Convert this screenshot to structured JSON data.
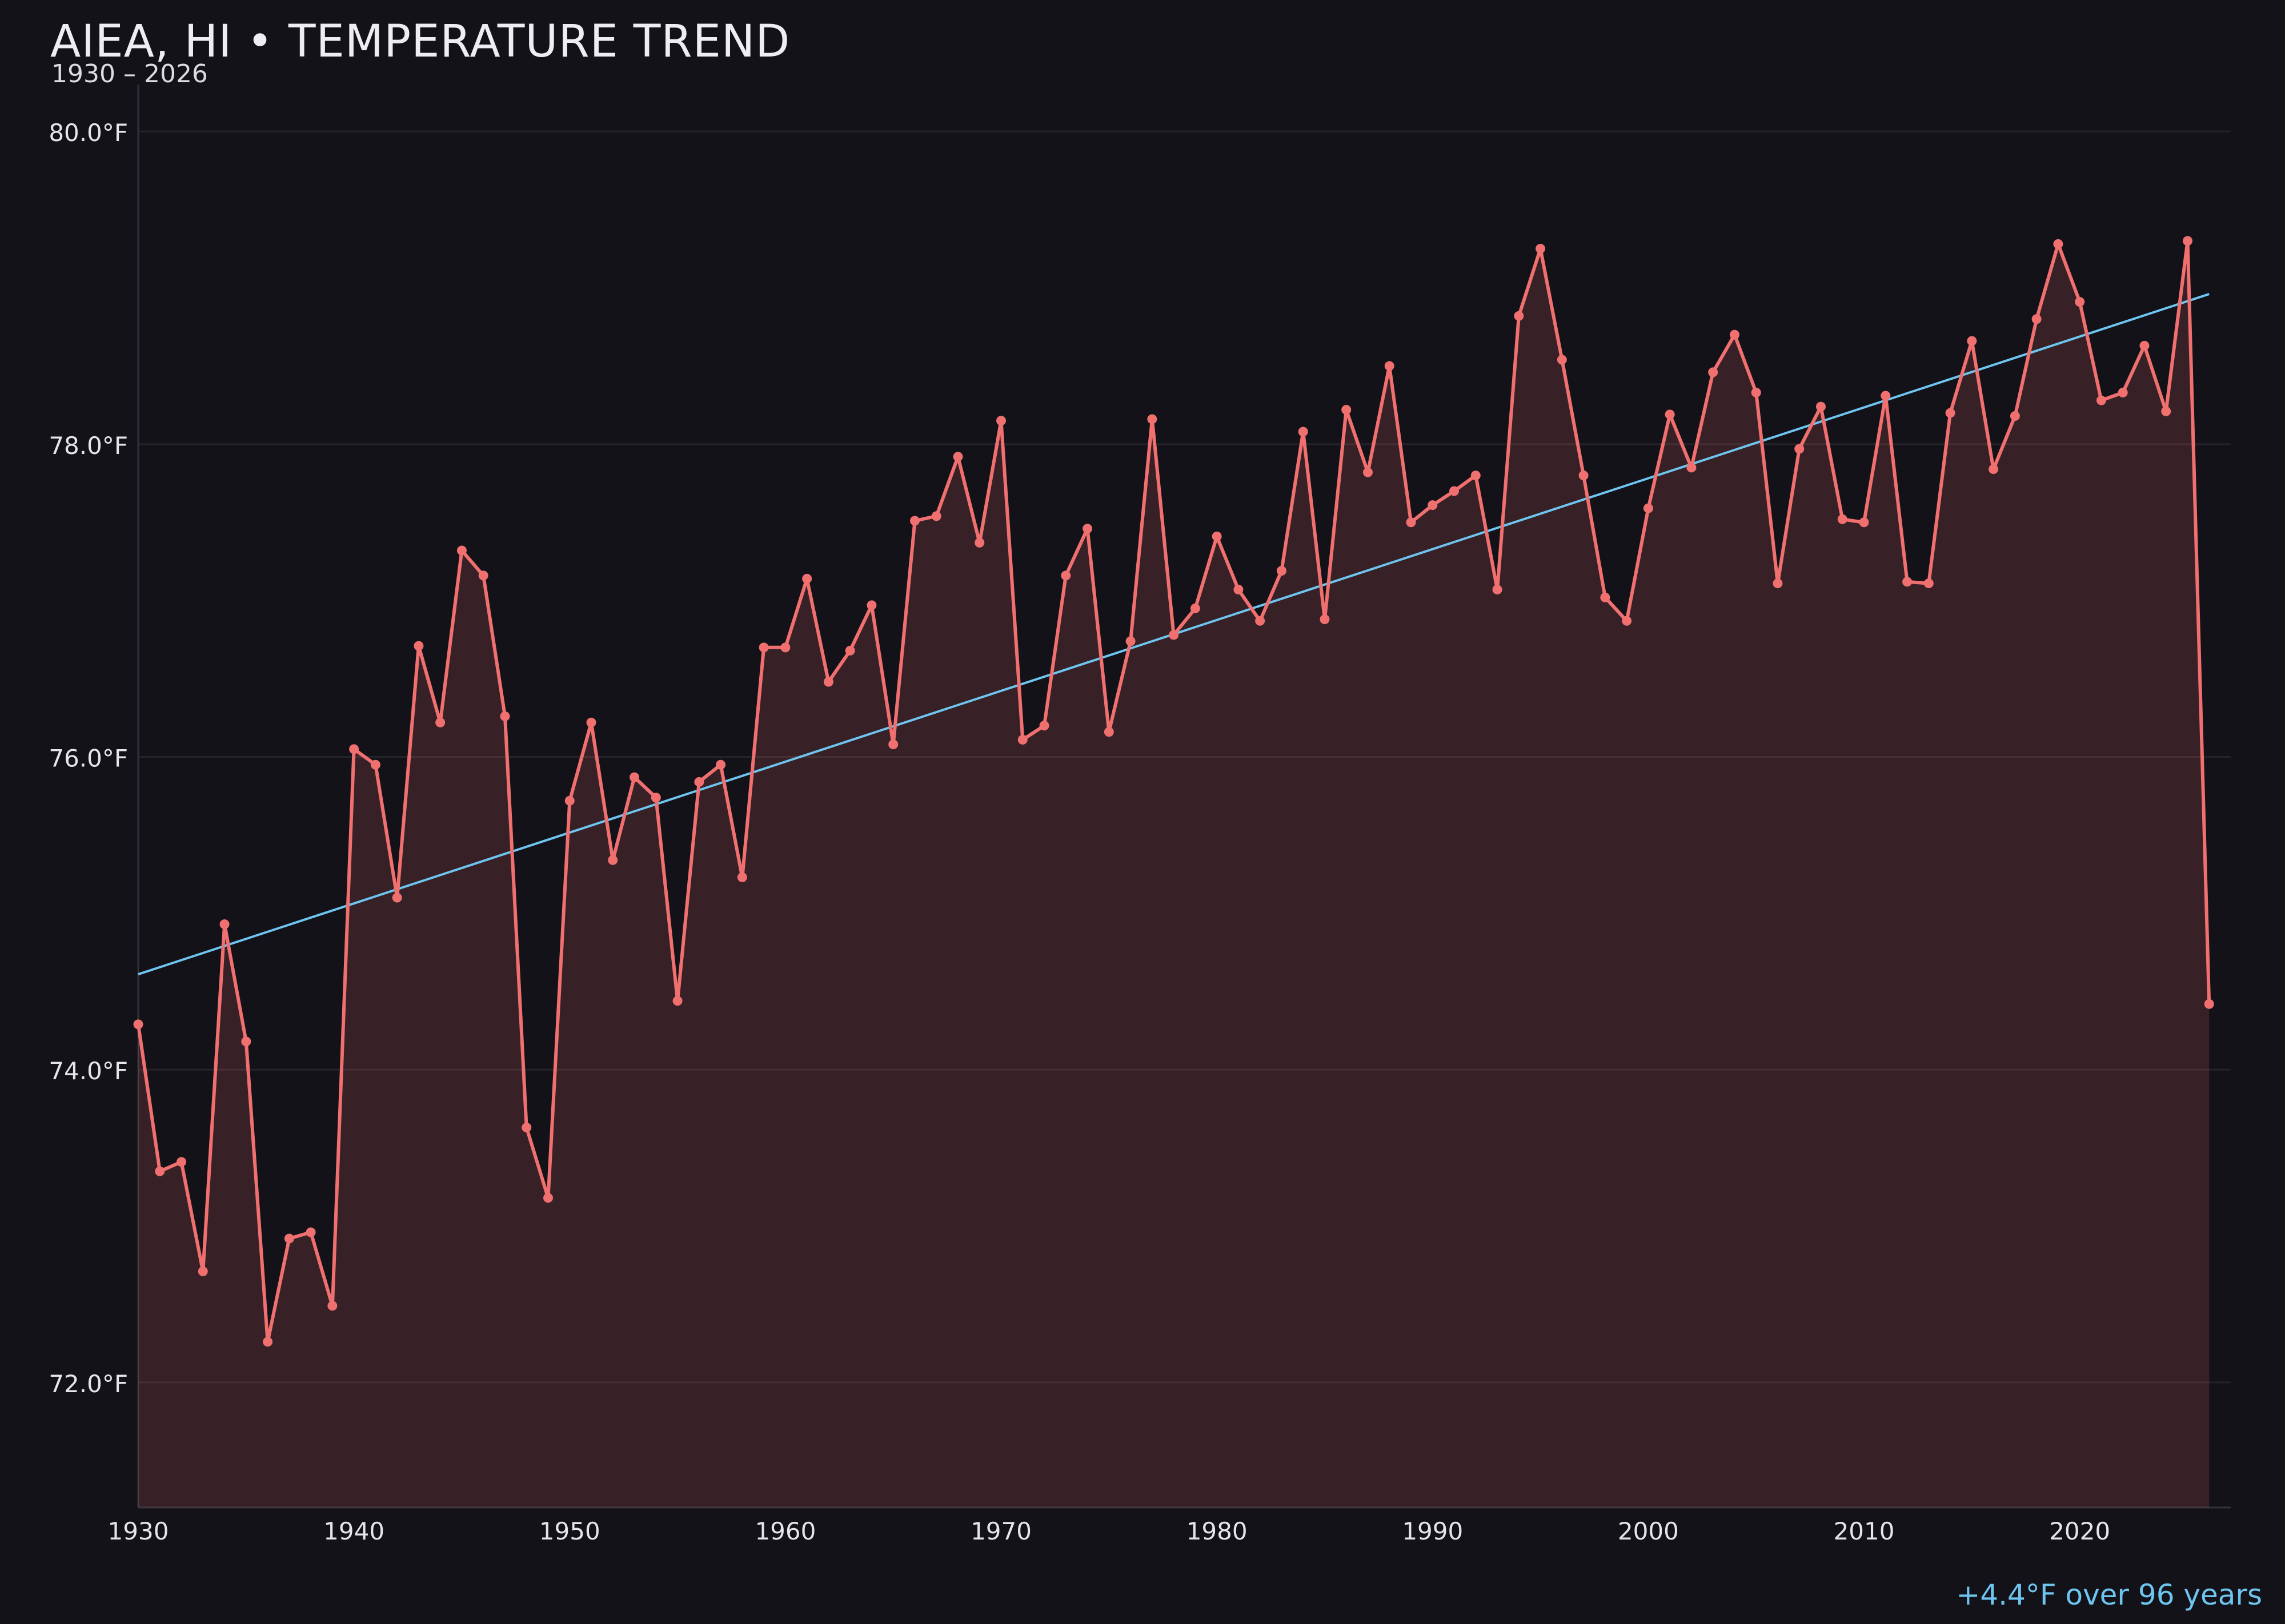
{
  "chart_data": {
    "type": "line",
    "title": "AIEA, HI • TEMPERATURE TREND",
    "subtitle": "1930 – 2026",
    "xlabel": "",
    "ylabel": "",
    "xlim": [
      1930,
      2027
    ],
    "ylim": [
      71.2,
      80.3
    ],
    "xticks": [
      1930,
      1940,
      1950,
      1960,
      1970,
      1980,
      1990,
      2000,
      2010,
      2020
    ],
    "xtick_labels": [
      "1930",
      "1940",
      "1950",
      "1960",
      "1970",
      "1980",
      "1990",
      "2000",
      "2010",
      "2020"
    ],
    "yticks": [
      72,
      74,
      76,
      78,
      80
    ],
    "ytick_labels": [
      "72.0°F",
      "74.0°F",
      "76.0°F",
      "78.0°F",
      "80.0°F"
    ],
    "grid": true,
    "area_fill": true,
    "series": [
      {
        "color": "#f07070",
        "x": [
          1930,
          1931,
          1932,
          1933,
          1934,
          1935,
          1936,
          1937,
          1938,
          1939,
          1940,
          1941,
          1942,
          1943,
          1944,
          1945,
          1946,
          1947,
          1948,
          1949,
          1950,
          1951,
          1952,
          1953,
          1954,
          1955,
          1956,
          1957,
          1958,
          1959,
          1960,
          1961,
          1962,
          1963,
          1964,
          1965,
          1966,
          1967,
          1968,
          1969,
          1970,
          1971,
          1972,
          1973,
          1974,
          1975,
          1976,
          1977,
          1978,
          1979,
          1980,
          1981,
          1982,
          1983,
          1984,
          1985,
          1986,
          1987,
          1988,
          1989,
          1990,
          1991,
          1992,
          1993,
          1994,
          1995,
          1996,
          1997,
          1998,
          1999,
          2000,
          2001,
          2002,
          2003,
          2004,
          2005,
          2006,
          2007,
          2008,
          2009,
          2010,
          2011,
          2012,
          2013,
          2014,
          2015,
          2016,
          2017,
          2018,
          2019,
          2020,
          2021,
          2022,
          2023,
          2024,
          2025,
          2026
        ],
        "values": [
          74.29,
          73.35,
          73.41,
          72.71,
          74.93,
          74.18,
          72.26,
          72.92,
          72.96,
          72.49,
          76.05,
          75.95,
          75.1,
          76.71,
          76.22,
          77.32,
          77.16,
          76.26,
          73.63,
          73.18,
          75.72,
          76.22,
          75.34,
          75.87,
          75.74,
          74.44,
          75.84,
          75.95,
          75.23,
          76.7,
          76.7,
          77.14,
          76.48,
          76.68,
          76.97,
          76.08,
          77.51,
          77.54,
          77.92,
          77.37,
          78.15,
          76.11,
          76.2,
          77.16,
          77.46,
          76.16,
          76.74,
          78.16,
          76.78,
          76.95,
          77.41,
          77.07,
          76.87,
          77.19,
          78.08,
          76.88,
          78.22,
          77.82,
          78.5,
          77.5,
          77.61,
          77.7,
          77.8,
          77.07,
          78.82,
          79.25,
          78.54,
          77.8,
          77.02,
          76.87,
          77.59,
          78.19,
          77.85,
          78.46,
          78.7,
          78.33,
          77.11,
          77.97,
          78.24,
          77.52,
          77.5,
          78.31,
          77.12,
          77.11,
          78.2,
          78.66,
          77.84,
          78.18,
          78.8,
          79.28,
          78.91,
          78.28,
          78.33,
          78.63,
          78.21,
          79.3,
          74.42
        ]
      },
      {
        "type": "trendline",
        "color": "#6ec5f0",
        "x": [
          1930,
          2026
        ],
        "values": [
          74.61,
          78.96
        ]
      }
    ],
    "annotation": {
      "text": "+4.4°F over 96 years",
      "color": "#6ec5f0"
    }
  }
}
